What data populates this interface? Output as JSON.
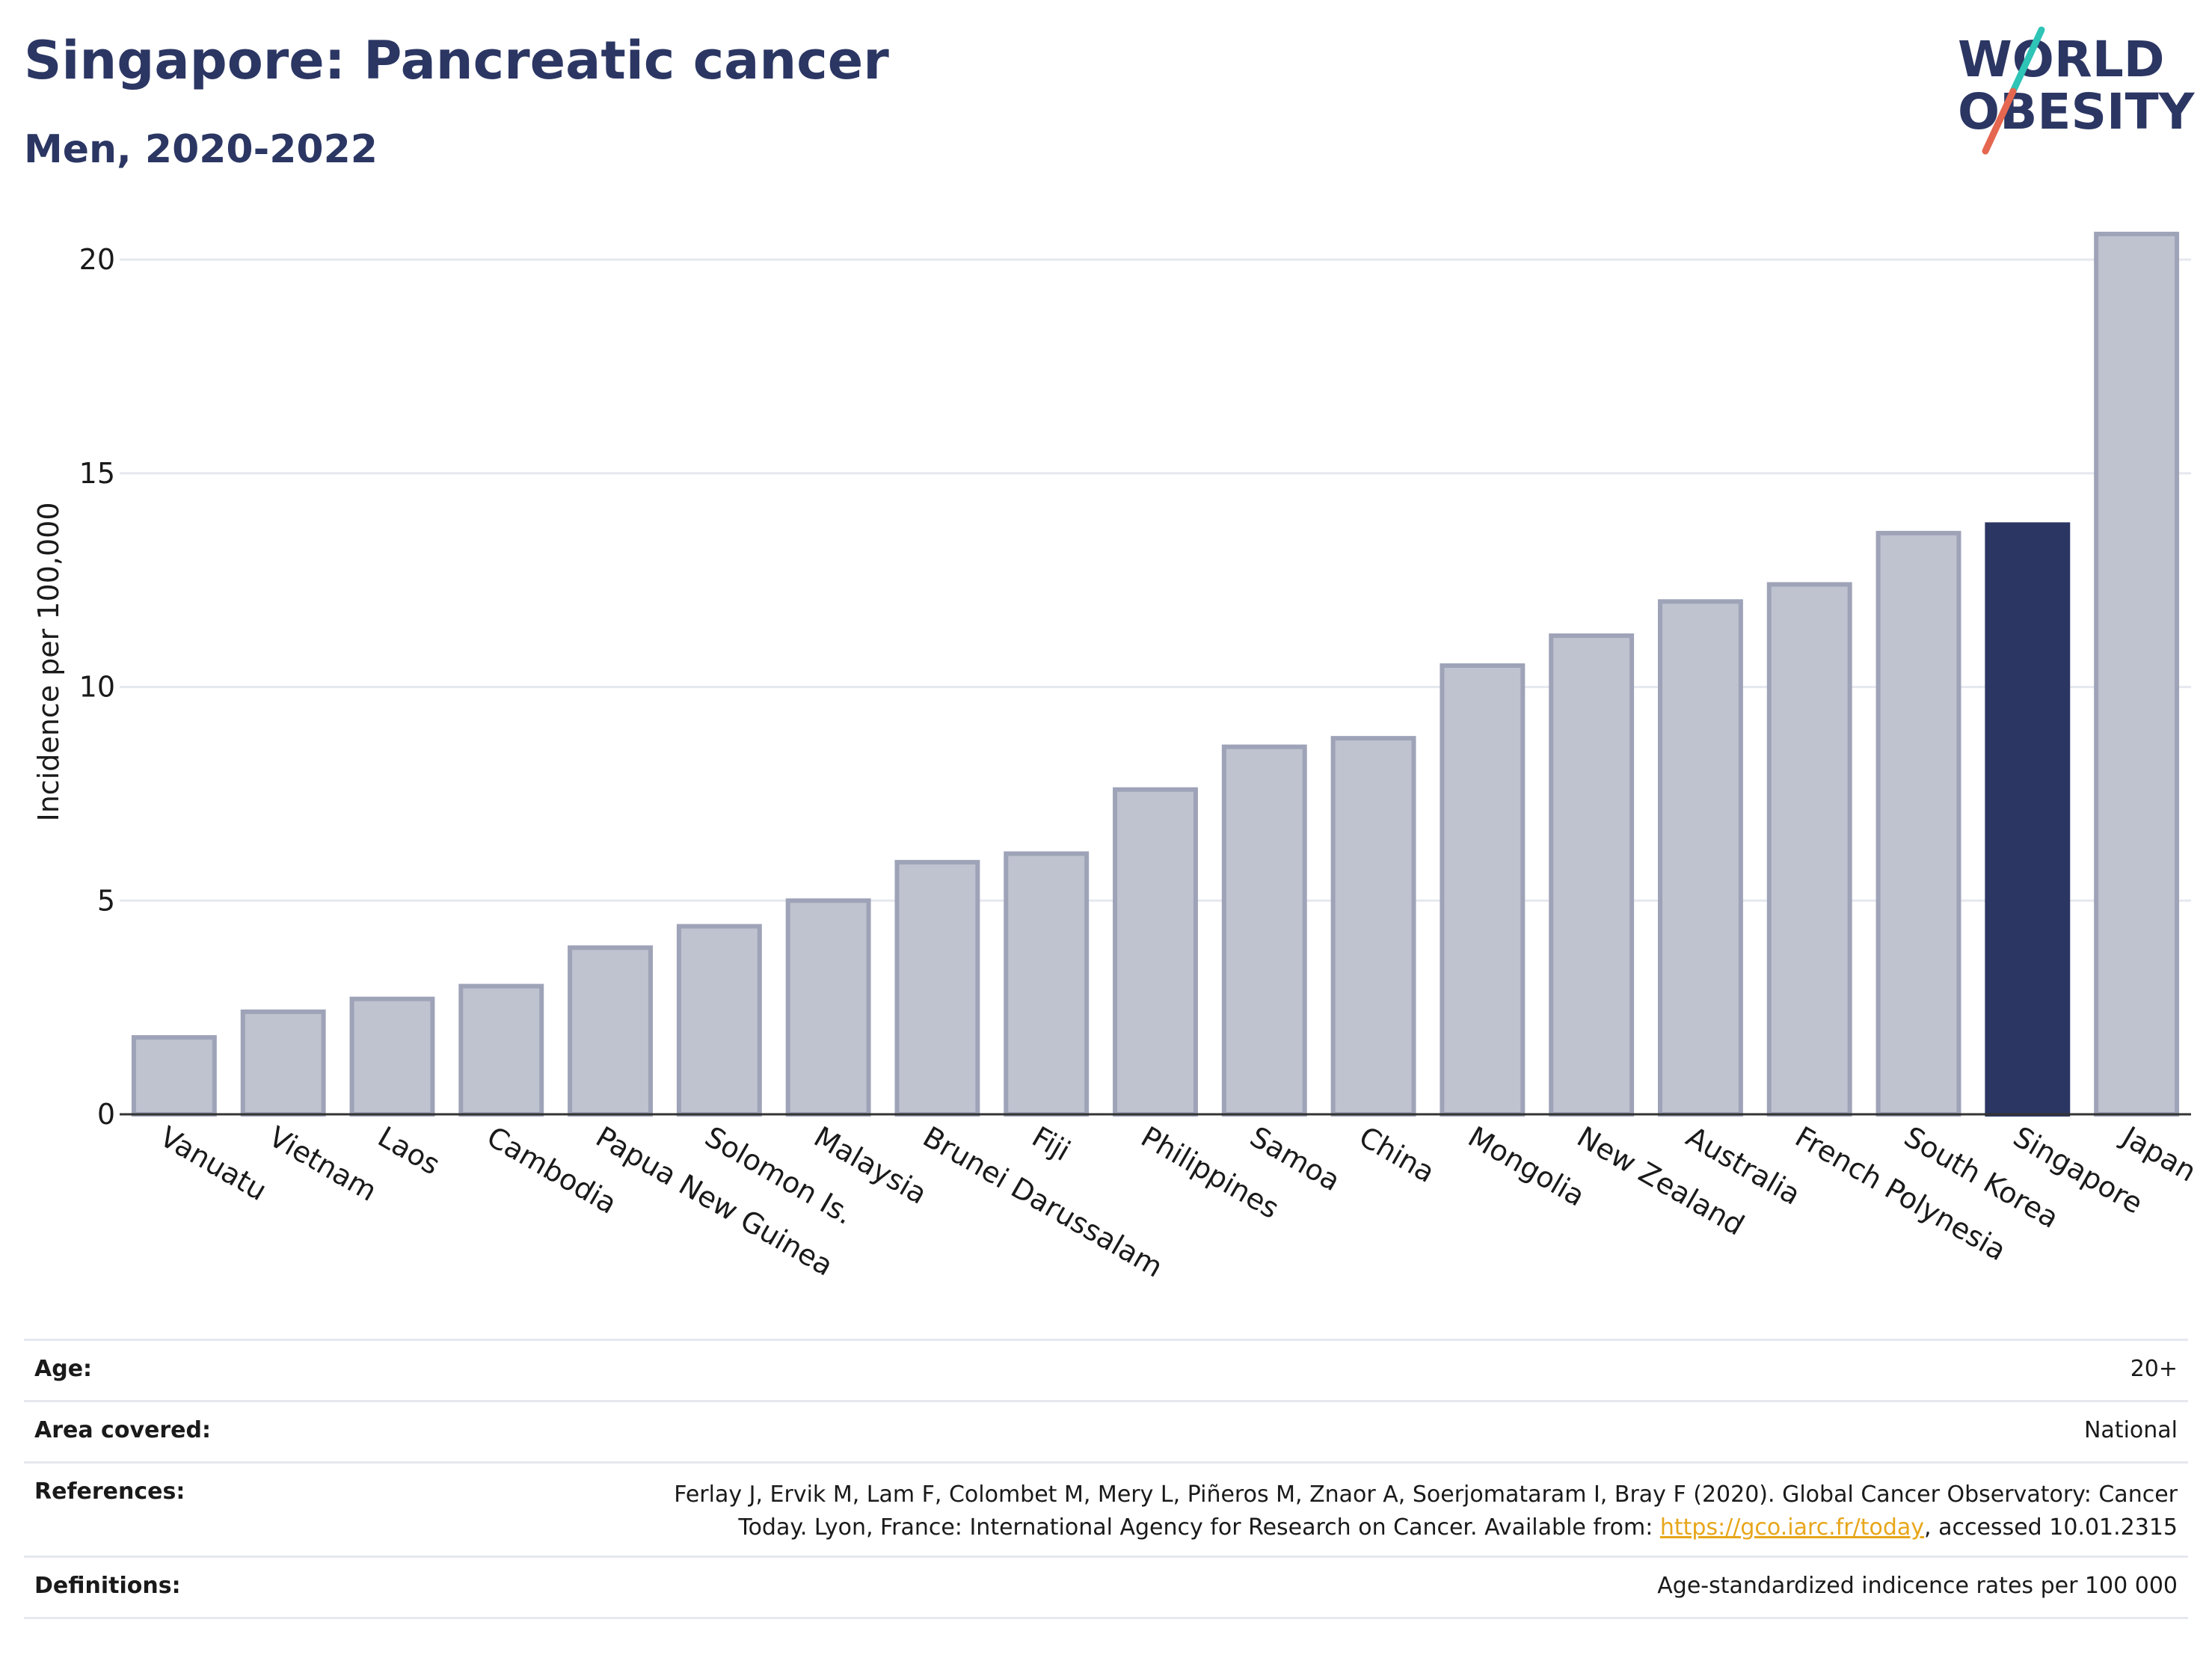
{
  "header": {
    "title": "Singapore: Pancreatic cancer",
    "subtitle": "Men, 2020-2022"
  },
  "logo": {
    "line1": "WORLD",
    "line2": "OBESITY",
    "colors": {
      "text": "#2b3663",
      "accent_teal": "#2ec4b6",
      "accent_red": "#e5674f"
    }
  },
  "colors": {
    "bar": "#bfc2cf",
    "bar_stroke": "#9ea3b8",
    "highlight": "#2b3663",
    "grid": "#e6e8ef"
  },
  "chart_data": {
    "type": "bar",
    "ylabel": "Incidence per 100,000",
    "ylim": [
      0,
      21
    ],
    "yticks": [
      0,
      5,
      10,
      15,
      20
    ],
    "grid": true,
    "highlight": "Singapore",
    "categories": [
      "Vanuatu",
      "Vietnam",
      "Laos",
      "Cambodia",
      "Papua New Guinea",
      "Solomon Is.",
      "Malaysia",
      "Brunei Darussalam",
      "Fiji",
      "Philippines",
      "Samoa",
      "China",
      "Mongolia",
      "New Zealand",
      "Australia",
      "French Polynesia",
      "South Korea",
      "Singapore",
      "Japan"
    ],
    "values": [
      1.8,
      2.4,
      2.7,
      3.0,
      3.9,
      4.4,
      5.0,
      5.9,
      6.1,
      7.6,
      8.6,
      8.8,
      10.5,
      11.2,
      12.0,
      12.4,
      13.6,
      13.8,
      20.6
    ]
  },
  "footer": {
    "age_label": "Age:",
    "age_value": "20+",
    "area_label": "Area covered:",
    "area_value": "National",
    "references_label": "References:",
    "references_line1": "Ferlay J, Ervik M, Lam F, Colombet M, Mery L, Piñeros M, Znaor A, Soerjomataram I, Bray F (2020). Global Cancer Observatory: Cancer",
    "references_line2_pre": "Today. Lyon, France: International Agency for Research on Cancer. Available from: ",
    "references_link": "https://gco.iarc.fr/today",
    "references_line2_post": ", accessed 10.01.2315",
    "definitions_label": "Definitions:",
    "definitions_value": "Age-standardized indicence rates per 100 000"
  }
}
